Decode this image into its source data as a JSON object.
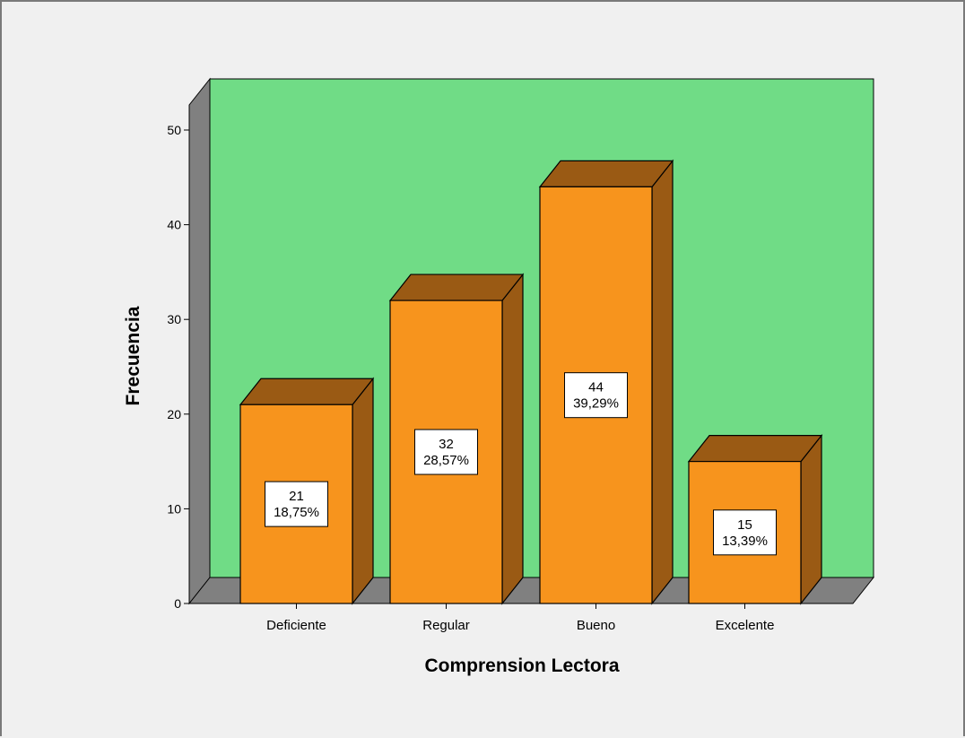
{
  "colors": {
    "page_background": "#f0f0f0",
    "plot_background": "#70dc86",
    "wall_gray": "#808080",
    "bar_front": "#f7941d",
    "bar_top": "#9a5a14",
    "bar_side": "#9a5a14",
    "label_box": "#ffffff",
    "outline": "#000000"
  },
  "chart_data": {
    "type": "bar",
    "style": "3d",
    "categories": [
      "Deficiente",
      "Regular",
      "Bueno",
      "Excelente"
    ],
    "values": [
      21,
      32,
      44,
      15
    ],
    "percent_labels": [
      "18,75%",
      "28,57%",
      "39,29%",
      "13,39%"
    ],
    "xlabel": "Comprension Lectora",
    "ylabel": "Frecuencia",
    "ylim": [
      0,
      50
    ],
    "yticks": [
      0,
      10,
      20,
      30,
      40,
      50
    ],
    "grid": false,
    "legend": "none"
  }
}
